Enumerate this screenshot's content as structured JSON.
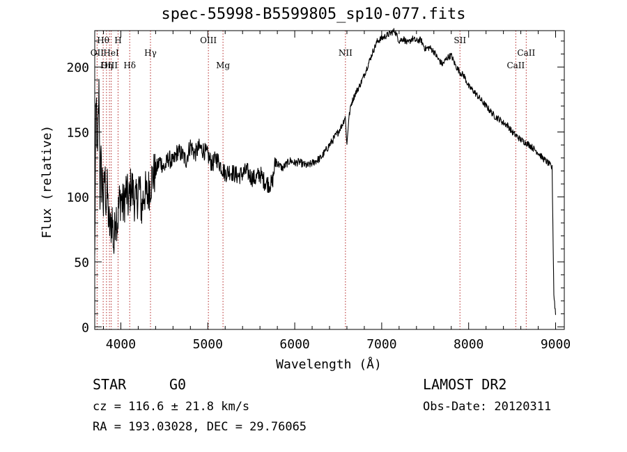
{
  "chart_data": {
    "type": "line",
    "title": "spec-55998-B5599805_sp10-077.fits",
    "xlabel": "Wavelength (Å)",
    "ylabel": "Flux (relative)",
    "xlim": [
      3700,
      9100
    ],
    "ylim": [
      -2,
      228
    ],
    "xticks": [
      4000,
      5000,
      6000,
      7000,
      8000,
      9000
    ],
    "yticks": [
      0,
      50,
      100,
      150,
      200
    ],
    "grid": false,
    "series": [
      {
        "color": "#000000",
        "x": [
          3700,
          3710,
          3720,
          3730,
          3740,
          3750,
          3760,
          3770,
          3780,
          3790,
          3800,
          3815,
          3830,
          3845,
          3860,
          3880,
          3900,
          3920,
          3940,
          3960,
          3980,
          4000,
          4030,
          4060,
          4090,
          4120,
          4150,
          4180,
          4210,
          4240,
          4270,
          4300,
          4330,
          4360,
          4400,
          4450,
          4500,
          4550,
          4600,
          4650,
          4700,
          4750,
          4800,
          4850,
          4900,
          4950,
          5000,
          5050,
          5100,
          5150,
          5200,
          5250,
          5300,
          5350,
          5400,
          5450,
          5500,
          5550,
          5600,
          5650,
          5700,
          5740,
          5780,
          5800,
          5830,
          5860,
          5900,
          5950,
          6000,
          6050,
          6100,
          6150,
          6200,
          6250,
          6300,
          6350,
          6400,
          6450,
          6500,
          6550,
          6580,
          6600,
          6620,
          6650,
          6700,
          6750,
          6800,
          6850,
          6900,
          6950,
          7000,
          7050,
          7100,
          7150,
          7200,
          7250,
          7300,
          7350,
          7400,
          7450,
          7500,
          7550,
          7600,
          7650,
          7700,
          7750,
          7800,
          7850,
          7900,
          7950,
          8000,
          8050,
          8100,
          8150,
          8200,
          8250,
          8300,
          8350,
          8400,
          8450,
          8500,
          8550,
          8600,
          8650,
          8700,
          8750,
          8800,
          8850,
          8900,
          8930,
          8960,
          8980,
          9000
        ],
        "y": [
          50,
          150,
          170,
          120,
          160,
          185,
          100,
          130,
          110,
          115,
          90,
          120,
          95,
          105,
          80,
          75,
          85,
          60,
          90,
          80,
          95,
          100,
          92,
          105,
          95,
          110,
          100,
          95,
          110,
          90,
          105,
          100,
          108,
          115,
          120,
          128,
          122,
          130,
          126,
          135,
          133,
          128,
          140,
          133,
          138,
          136,
          132,
          125,
          130,
          124,
          118,
          120,
          118,
          116,
          118,
          120,
          115,
          114,
          118,
          112,
          110,
          110,
          128,
          126,
          124,
          122,
          125,
          128,
          126,
          127,
          125,
          124,
          126,
          128,
          130,
          135,
          140,
          145,
          150,
          156,
          162,
          140,
          160,
          172,
          180,
          186,
          194,
          203,
          212,
          220,
          222,
          224,
          226,
          228,
          220,
          222,
          218,
          222,
          220,
          221,
          214,
          215,
          212,
          206,
          202,
          207,
          209,
          201,
          196,
          193,
          185,
          182,
          178,
          174,
          170,
          166,
          162,
          160,
          157,
          155,
          150,
          147,
          144,
          142,
          140,
          137,
          134,
          130,
          127,
          125,
          122,
          25,
          10
        ]
      }
    ],
    "line_markers": [
      {
        "label": "Hθ",
        "x": 3797,
        "row": 1
      },
      {
        "label": "OII",
        "x": 3727,
        "row": 2
      },
      {
        "label": "H",
        "x": 3968,
        "row": 1
      },
      {
        "label": "HeI",
        "x": 3889,
        "row": 2
      },
      {
        "label": "OIII",
        "x": 3869,
        "row": 3
      },
      {
        "label": "Hη",
        "x": 3835,
        "row": 3
      },
      {
        "label": "Hδ",
        "x": 4102,
        "row": 3
      },
      {
        "label": "Hγ",
        "x": 4341,
        "row": 2
      },
      {
        "label": "OIII",
        "x": 5007,
        "row": 1
      },
      {
        "label": "Mg",
        "x": 5175,
        "row": 3
      },
      {
        "label": "NII",
        "x": 6583,
        "row": 2
      },
      {
        "label": "SII",
        "x": 7900,
        "row": 1
      },
      {
        "label": "CaII",
        "x": 8542,
        "row": 3
      },
      {
        "label": "CaII",
        "x": 8662,
        "row": 2
      }
    ]
  },
  "footer": {
    "object_class": "STAR",
    "subclass": "G0",
    "survey": "LAMOST DR2",
    "redshift_line": "cz = 116.6 ± 21.8 km/s",
    "obs_date": "Obs-Date: 20120311",
    "coords": "RA = 193.03028, DEC =  29.76065"
  }
}
